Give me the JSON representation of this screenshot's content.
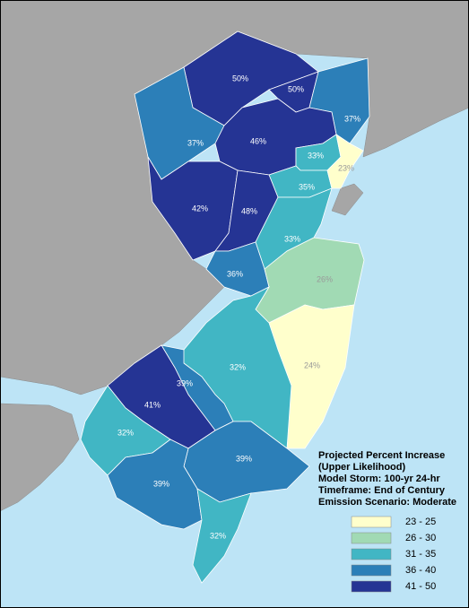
{
  "regions": [
    {
      "value": 50,
      "label": "50%",
      "color": "#253494"
    },
    {
      "value": 50,
      "label": "50%",
      "color": "#253494"
    },
    {
      "value": 37,
      "label": "37%",
      "color": "#2c7fb8"
    },
    {
      "value": 37,
      "label": "37%",
      "color": "#2c7fb8"
    },
    {
      "value": 46,
      "label": "46%",
      "color": "#253494"
    },
    {
      "value": 33,
      "label": "33%",
      "color": "#41b6c4"
    },
    {
      "value": 35,
      "label": "35%",
      "color": "#41b6c4"
    },
    {
      "value": 23,
      "label": "23%",
      "color": "#ffffcc"
    },
    {
      "value": 42,
      "label": "42%",
      "color": "#253494"
    },
    {
      "value": 48,
      "label": "48%",
      "color": "#253494"
    },
    {
      "value": 33,
      "label": "33%",
      "color": "#41b6c4"
    },
    {
      "value": 36,
      "label": "36%",
      "color": "#2c7fb8"
    },
    {
      "value": 26,
      "label": "26%",
      "color": "#a1dab4"
    },
    {
      "value": 24,
      "label": "24%",
      "color": "#ffffcc"
    },
    {
      "value": 32,
      "label": "32%",
      "color": "#41b6c4"
    },
    {
      "value": 39,
      "label": "39%",
      "color": "#2c7fb8"
    },
    {
      "value": 41,
      "label": "41%",
      "color": "#253494"
    },
    {
      "value": 32,
      "label": "32%",
      "color": "#41b6c4"
    },
    {
      "value": 39,
      "label": "39%",
      "color": "#2c7fb8"
    },
    {
      "value": 39,
      "label": "39%",
      "color": "#2c7fb8"
    },
    {
      "value": 32,
      "label": "32%",
      "color": "#41b6c4"
    }
  ],
  "legend": {
    "title": [
      "Projected Percent Increase",
      "(Upper Likelihood)",
      "Model Storm: 100-yr 24-hr",
      "Timeframe: End of Century",
      "Emission Scenario: Moderate"
    ],
    "items": [
      {
        "label": "23 - 25",
        "color": "#ffffcc"
      },
      {
        "label": "26 - 30",
        "color": "#a1dab4"
      },
      {
        "label": "31 - 35",
        "color": "#41b6c4"
      },
      {
        "label": "36 - 40",
        "color": "#2c7fb8"
      },
      {
        "label": "41 - 50",
        "color": "#253494"
      }
    ]
  }
}
